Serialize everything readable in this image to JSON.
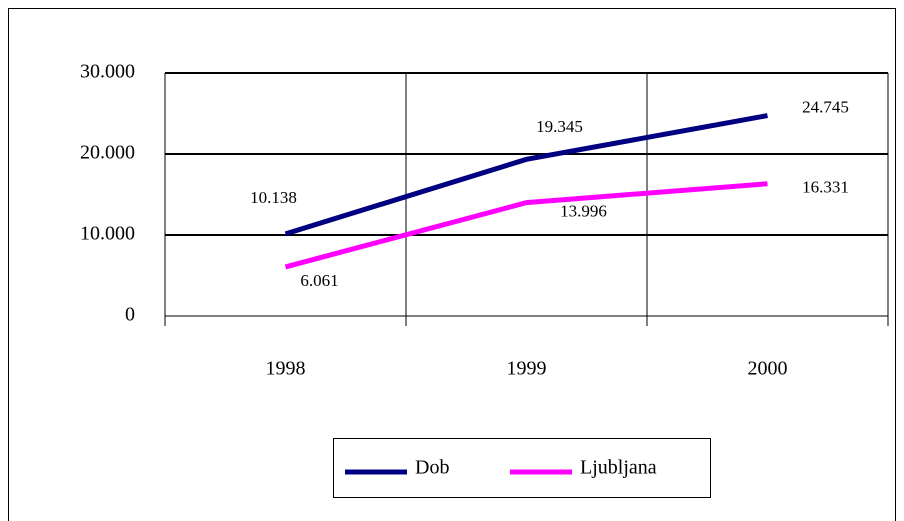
{
  "chart_data": {
    "type": "line",
    "categories": [
      "1998",
      "1999",
      "2000"
    ],
    "series": [
      {
        "name": "Dob",
        "color": "#000080",
        "values": [
          10138,
          19345,
          24745
        ],
        "value_labels": [
          "10.138",
          "19.345",
          "24.745"
        ]
      },
      {
        "name": "Ljubljana",
        "color": "#ff00ff",
        "values": [
          6061,
          13996,
          16331
        ],
        "value_labels": [
          "6.061",
          "13.996",
          "16.331"
        ]
      }
    ],
    "ylim": [
      0,
      30000
    ],
    "yticks": [
      {
        "value": 0,
        "label": "0"
      },
      {
        "value": 10000,
        "label": "10.000"
      },
      {
        "value": 20000,
        "label": "20.000"
      },
      {
        "value": 30000,
        "label": "30.000"
      }
    ],
    "grid": true,
    "legend": "bottom"
  }
}
